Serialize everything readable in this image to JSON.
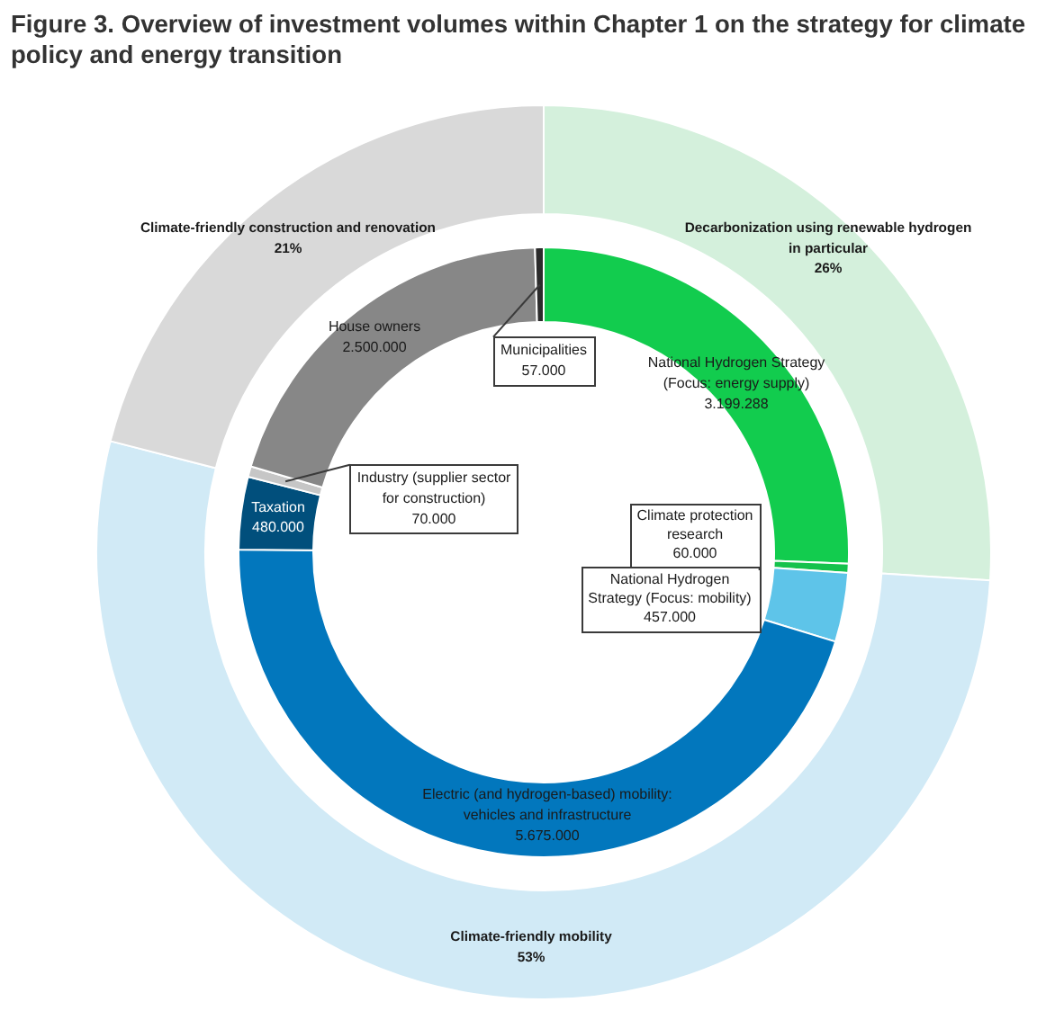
{
  "chart_data": [
    {
      "type": "donut",
      "title": "Figure 3. Overview of investment volumes within Chapter 1 on the strategy for climate policy and energy transition",
      "categories": [
        "Decarbonization using renewable hydrogen in particular",
        "Climate-friendly mobility",
        "Climate-friendly construction and renovation"
      ],
      "values": [
        26,
        53,
        21
      ],
      "colors": [
        "#d4f0dc",
        "#d1eaf6",
        "#d9d9d9"
      ],
      "value_labels": [
        "26%",
        "53%",
        "21%"
      ]
    },
    {
      "type": "donut",
      "categories": [
        "National Hydrogen Strategy (Focus: energy supply)",
        "Climate protection research",
        "National Hydrogen Strategy (Focus: mobility)",
        "Electric (and hydrogen-based) mobility: vehicles and infrastructure",
        "Taxation",
        "Industry (supplier sector for construction)",
        "House owners",
        "Municipalities"
      ],
      "values": [
        3199288,
        60000,
        457000,
        5675000,
        480000,
        70000,
        2500000,
        57000
      ],
      "colors": [
        "#12cc4e",
        "#14c24c",
        "#5ec4e9",
        "#0277bd",
        "#014f7c",
        "#c6c6c6",
        "#878787",
        "#2b2b2b"
      ],
      "value_labels": [
        "3.199.288",
        "60.000",
        "457.000",
        "5.675.000",
        "480.000",
        "70.000",
        "2.500.000",
        "57.000"
      ]
    }
  ]
}
